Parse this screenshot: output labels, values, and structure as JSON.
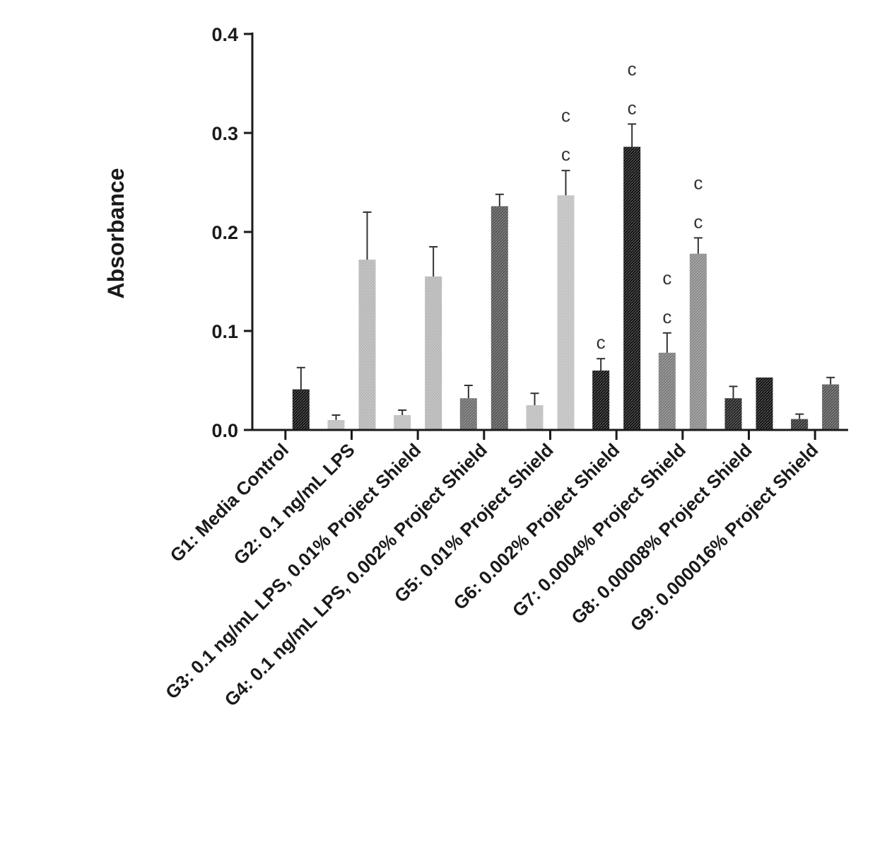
{
  "chart_data": {
    "type": "bar",
    "ylabel": "Absorbance",
    "xlabel": "",
    "title": "",
    "ylim": [
      0,
      0.4
    ],
    "yticks": [
      "0.0",
      "0.1",
      "0.2",
      "0.3",
      "0.4"
    ],
    "categories": [
      "G1: Media Control",
      "G2: 0.1 ng/mL LPS",
      "G3: 0.1 ng/mL LPS, 0.01% Project Shield",
      "G4: 0.1 ng/mL LPS, 0.002% Project Shield",
      "G5: 0.01% Project Shield",
      "G6: 0.002% Project Shield",
      "G7: 0.0004% Project Shield",
      "G8: 0.00008% Project Shield",
      "G9: 0.000016% Project Shield"
    ],
    "series": [
      {
        "values": [
          0.001,
          0.01,
          0.015,
          0.032,
          0.025,
          0.06,
          0.078,
          0.032,
          0.011
        ],
        "errors": [
          0.0,
          0.005,
          0.005,
          0.013,
          0.012,
          0.012,
          0.02,
          0.012,
          0.005
        ],
        "colors": [
          "#222222",
          "#bdbdbd",
          "#bdbdbd",
          "#6a6a6a",
          "#bdbdbd",
          "#111111",
          "#7a7a7a",
          "#222222",
          "#333333"
        ],
        "annotations": [
          "",
          "",
          "",
          "",
          "",
          "c",
          "cc",
          "",
          ""
        ]
      },
      {
        "values": [
          0.041,
          0.172,
          0.155,
          0.226,
          0.237,
          0.286,
          0.178,
          0.053,
          0.046
        ],
        "errors": [
          0.022,
          0.048,
          0.03,
          0.012,
          0.025,
          0.023,
          0.016,
          0.0,
          0.007
        ],
        "colors": [
          "#111111",
          "#b5b5b5",
          "#b5b5b5",
          "#555555",
          "#c0c0c0",
          "#111111",
          "#8a8a8a",
          "#111111",
          "#555555"
        ],
        "annotations": [
          "",
          "",
          "",
          "",
          "cc",
          "cc",
          "cc",
          "",
          ""
        ]
      }
    ]
  }
}
